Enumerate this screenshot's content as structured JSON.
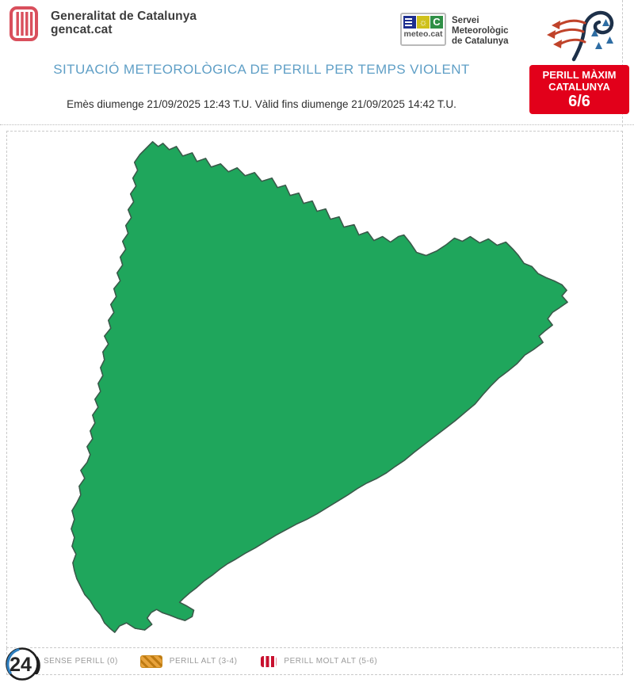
{
  "header": {
    "gencat": {
      "line1": "Generalitat de Catalunya",
      "line2": "gencat.cat"
    },
    "meteocat": {
      "logo_label": "meteo.cat",
      "service_lines": [
        "Servei",
        "Meteorològic",
        "de Catalunya"
      ]
    },
    "title": "SITUACIÓ METEOROLÒGICA DE PERILL PER TEMPS VIOLENT",
    "validity": "Emès diumenge 21/09/2025 12:43 T.U. Vàlid fins diumenge 21/09/2025 14:42 T.U.",
    "max_danger": {
      "line1": "PERILL MÀXIM",
      "line2": "CATALUNYA",
      "value": "6/6"
    }
  },
  "legend": {
    "items": [
      {
        "label": "SENSE PERILL (0)",
        "level": "0",
        "pattern": "solid-green"
      },
      {
        "label": "PERILL ALT (3-4)",
        "level": "3-4",
        "pattern": "orange-diagonal-hatch"
      },
      {
        "label": "PERILL MOLT ALT (5-6)",
        "level": "5-6",
        "pattern": "red-vertical-stripes"
      }
    ]
  },
  "map": {
    "name": "Mapa de comarques de Catalunya per nivell de perill",
    "zones": [
      {
        "name": "sense-perill",
        "level": "0",
        "color": "#1fa65c"
      },
      {
        "name": "perill-alt",
        "level": "3-4",
        "color": "#e8a33c"
      },
      {
        "name": "perill-molt-alt",
        "level": "5-6",
        "color": "#cc1733"
      }
    ]
  },
  "footer": {
    "badge": "24"
  },
  "palette": {
    "green": "#1fa65c",
    "comarca_line": "#23573d",
    "orange": "#e8a33c",
    "orange_stripe": "#bd7a12",
    "orange_border": "#8a5a10",
    "red": "#cc1733",
    "red_stripe": "#f3ece8",
    "red_border": "#8a0f20",
    "title_blue": "#5f9fc6",
    "alert_red": "#e2001a"
  }
}
